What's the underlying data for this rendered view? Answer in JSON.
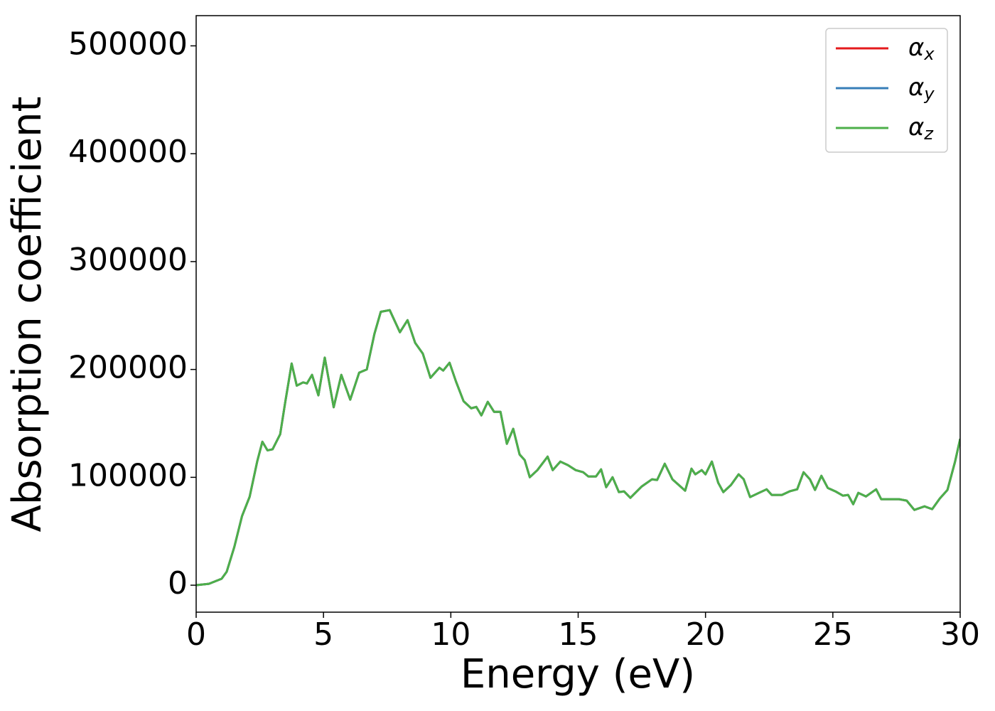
{
  "chart_data": {
    "type": "line",
    "x_label": "Energy (eV)",
    "y_label": "Absorption coefficient",
    "x": [
      0,
      0.5,
      1,
      1.2,
      1.5,
      1.8,
      2.1,
      2.4,
      2.6,
      2.8,
      3,
      3.3,
      3.5,
      3.75,
      3.95,
      4.2,
      4.35,
      4.55,
      4.8,
      5.05,
      5.4,
      5.7,
      6.05,
      6.4,
      6.7,
      7,
      7.25,
      7.6,
      8,
      8.3,
      8.6,
      8.9,
      9.2,
      9.55,
      9.7,
      9.95,
      10.2,
      10.5,
      10.8,
      11,
      11.2,
      11.45,
      11.7,
      11.95,
      12.2,
      12.45,
      12.7,
      12.9,
      13.1,
      13.4,
      13.8,
      14,
      14.3,
      14.6,
      14.9,
      15.2,
      15.4,
      15.7,
      15.9,
      16.1,
      16.35,
      16.6,
      16.8,
      17.05,
      17.5,
      17.9,
      18.1,
      18.4,
      18.7,
      19.2,
      19.45,
      19.6,
      19.85,
      20,
      20.25,
      20.5,
      20.7,
      21,
      21.3,
      21.5,
      21.75,
      22.1,
      22.4,
      22.6,
      23,
      23.3,
      23.6,
      23.85,
      24.1,
      24.3,
      24.55,
      24.8,
      25.1,
      25.4,
      25.6,
      25.8,
      26,
      26.3,
      26.5,
      26.7,
      26.9,
      27.3,
      27.6,
      27.9,
      28.2,
      28.6,
      28.9,
      29.2,
      29.5,
      29.8,
      30
    ],
    "series": [
      {
        "name": "αx",
        "color": "#e41a1c",
        "values": [
          0,
          1300,
          6000,
          12500,
          35600,
          64000,
          82000,
          115000,
          133000,
          125000,
          126000,
          140000,
          170000,
          205500,
          185000,
          188000,
          187000,
          195000,
          176000,
          211000,
          165000,
          195000,
          172000,
          197000,
          200000,
          233000,
          253500,
          255000,
          234500,
          245700,
          224600,
          214700,
          192300,
          201600,
          199000,
          206200,
          189000,
          170600,
          164000,
          165300,
          157400,
          170000,
          160700,
          160700,
          131100,
          145000,
          121200,
          116000,
          100100,
          106700,
          119200,
          106700,
          114600,
          111300,
          106700,
          104700,
          100800,
          100800,
          107400,
          90900,
          100100,
          86300,
          87000,
          81000,
          91600,
          98200,
          97500,
          112600,
          98200,
          87600,
          108000,
          102800,
          106700,
          102800,
          114600,
          94900,
          86300,
          92900,
          102800,
          98200,
          81700,
          85600,
          88900,
          83700,
          83700,
          87000,
          88900,
          104700,
          98200,
          88300,
          101400,
          90200,
          87000,
          83000,
          83700,
          75100,
          85600,
          82300,
          85600,
          88900,
          79700,
          79700,
          79700,
          78400,
          69800,
          73100,
          70500,
          80400,
          88300,
          114600,
          135700
        ]
      },
      {
        "name": "αy",
        "color": "#377eb8",
        "values": [
          0,
          1300,
          6000,
          12500,
          35600,
          64000,
          82000,
          115000,
          133000,
          125000,
          126000,
          140000,
          170000,
          205500,
          185000,
          188000,
          187000,
          195000,
          176000,
          211000,
          165000,
          195000,
          172000,
          197000,
          200000,
          233000,
          253500,
          255000,
          234500,
          245700,
          224600,
          214700,
          192300,
          201600,
          199000,
          206200,
          189000,
          170600,
          164000,
          165300,
          157400,
          170000,
          160700,
          160700,
          131100,
          145000,
          121200,
          116000,
          100100,
          106700,
          119200,
          106700,
          114600,
          111300,
          106700,
          104700,
          100800,
          100800,
          107400,
          90900,
          100100,
          86300,
          87000,
          81000,
          91600,
          98200,
          97500,
          112600,
          98200,
          87600,
          108000,
          102800,
          106700,
          102800,
          114600,
          94900,
          86300,
          92900,
          102800,
          98200,
          81700,
          85600,
          88900,
          83700,
          83700,
          87000,
          88900,
          104700,
          98200,
          88300,
          101400,
          90200,
          87000,
          83000,
          83700,
          75100,
          85600,
          82300,
          85600,
          88900,
          79700,
          79700,
          79700,
          78400,
          69800,
          73100,
          70500,
          80400,
          88300,
          114600,
          135700
        ]
      },
      {
        "name": "αz",
        "color": "#4daf4a",
        "values": [
          0,
          1300,
          6000,
          12500,
          35600,
          64000,
          82000,
          115000,
          133000,
          125000,
          126000,
          140000,
          170000,
          205500,
          185000,
          188000,
          187000,
          195000,
          176000,
          211000,
          165000,
          195000,
          172000,
          197000,
          200000,
          233000,
          253500,
          255000,
          234500,
          245700,
          224600,
          214700,
          192300,
          201600,
          199000,
          206200,
          189000,
          170600,
          164000,
          165300,
          157400,
          170000,
          160700,
          160700,
          131100,
          145000,
          121200,
          116000,
          100100,
          106700,
          119200,
          106700,
          114600,
          111300,
          106700,
          104700,
          100800,
          100800,
          107400,
          90900,
          100100,
          86300,
          87000,
          81000,
          91600,
          98200,
          97500,
          112600,
          98200,
          87600,
          108000,
          102800,
          106700,
          102800,
          114600,
          94900,
          86300,
          92900,
          102800,
          98200,
          81700,
          85600,
          88900,
          83700,
          83700,
          87000,
          88900,
          104700,
          98200,
          88300,
          101400,
          90200,
          87000,
          83000,
          83700,
          75100,
          85600,
          82300,
          85600,
          88900,
          79700,
          79700,
          79700,
          78400,
          69800,
          73100,
          70500,
          80400,
          88300,
          114600,
          135700
        ]
      }
    ],
    "xlim": [
      0,
      30
    ],
    "xticks": [
      0,
      5,
      10,
      15,
      20,
      25,
      30
    ],
    "ylim": [
      -25000,
      528000
    ],
    "yticks": [
      0,
      100000,
      200000,
      300000,
      400000,
      500000
    ],
    "legend": "upper right",
    "grid": false
  }
}
